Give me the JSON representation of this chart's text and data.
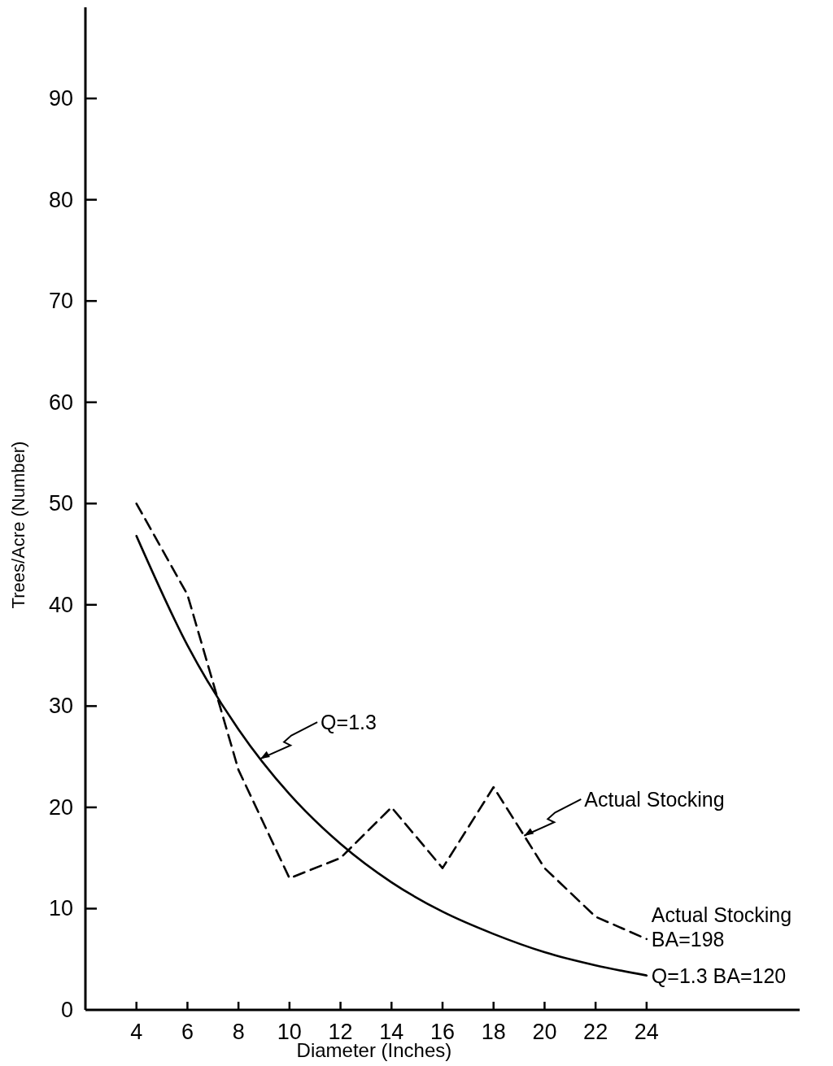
{
  "chart_data": {
    "type": "line",
    "xlabel": "Diameter (Inches)",
    "ylabel": "Trees/Acre (Number)",
    "x": [
      4,
      6,
      8,
      10,
      12,
      14,
      16,
      18,
      20,
      22,
      24
    ],
    "xlim": [
      2,
      30
    ],
    "xticks": [
      4,
      6,
      8,
      10,
      12,
      14,
      16,
      18,
      20,
      22,
      24
    ],
    "ylim": [
      0,
      99
    ],
    "yticks": [
      0,
      10,
      20,
      30,
      40,
      50,
      60,
      70,
      80,
      90
    ],
    "series": [
      {
        "name": "Actual Stocking\nBA=198",
        "color": "#000000",
        "line_style": "dashed",
        "values": [
          50,
          41,
          23.7,
          13,
          15,
          20,
          14,
          22,
          14,
          9.2,
          7
        ]
      },
      {
        "name": "Q=1.3 BA=120",
        "color": "#000000",
        "line_style": "solid",
        "values": [
          46.8,
          36,
          27.7,
          21.3,
          16.4,
          12.6,
          9.7,
          7.5,
          5.7,
          4.4,
          3.4
        ]
      }
    ],
    "annotations": [
      {
        "text": "Q=1.3",
        "x": 8.86,
        "y": 24.8
      },
      {
        "text": "Actual Stocking",
        "x": 19.2,
        "y": 17.2
      }
    ],
    "grid": false
  }
}
